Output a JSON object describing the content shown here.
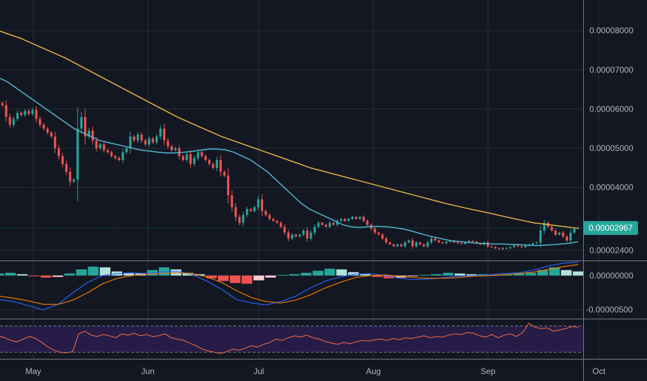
{
  "chart_data": {
    "type": "candlestick",
    "title": "",
    "colors": {
      "background": "#131722",
      "grid": "#2a2e39",
      "up": "#26a69a",
      "down": "#ef5350",
      "ma_fast": "#4fb7d0",
      "ma_slow": "#e6b245",
      "macd_line": "#2962ff",
      "signal_line": "#f57c00",
      "rsi_line": "#ff7043",
      "rsi_band": "#2a1d4d",
      "text": "#b2b5be"
    },
    "x_axis": {
      "start": "2020-04-22",
      "end": "2020-10-14",
      "ticks": [
        {
          "date": "2020-05-01",
          "label": "May"
        },
        {
          "date": "2020-06-01",
          "label": "Jun"
        },
        {
          "date": "2020-07-01",
          "label": "Jul"
        },
        {
          "date": "2020-08-01",
          "label": "Aug"
        },
        {
          "date": "2020-09-01",
          "label": "Sep"
        },
        {
          "date": "2020-10-01",
          "label": "Oct"
        }
      ]
    },
    "price_pane": {
      "ylim": [
        2.14e-05,
        8.78e-05
      ],
      "ticks": [
        {
          "value": 8e-05,
          "label": "0.00008000"
        },
        {
          "value": 7e-05,
          "label": "0.00007000"
        },
        {
          "value": 6e-05,
          "label": "0.00006000"
        },
        {
          "value": 5e-05,
          "label": "0.00005000"
        },
        {
          "value": 4e-05,
          "label": "0.00004000"
        },
        {
          "value": 2.4e-05,
          "label": "0.00002400"
        }
      ],
      "last_price": {
        "value": 2.967e-05,
        "label": "0.00002967"
      },
      "closes": [
        6.15e-05,
        6.1e-05,
        5.8e-05,
        5.6e-05,
        5.75e-05,
        5.9e-05,
        5.85e-05,
        5.95e-05,
        5.88e-05,
        5.98e-05,
        5.75e-05,
        5.6e-05,
        5.5e-05,
        5.4e-05,
        5.3e-05,
        5e-05,
        4.8e-05,
        4.6e-05,
        4.4e-05,
        4.15e-05,
        4.2e-05,
        5.5e-05,
        5.8e-05,
        5.3e-05,
        5.45e-05,
        5.2e-05,
        5e-05,
        5.1e-05,
        4.95e-05,
        4.9e-05,
        4.8e-05,
        4.75e-05,
        4.7e-05,
        4.9e-05,
        5e-05,
        5.3e-05,
        5.2e-05,
        5.35e-05,
        5.2e-05,
        5.1e-05,
        5.25e-05,
        5.15e-05,
        5.3e-05,
        5.5e-05,
        5.2e-05,
        5.05e-05,
        4.95e-05,
        5e-05,
        4.8e-05,
        4.7e-05,
        4.85e-05,
        4.6e-05,
        4.75e-05,
        4.9e-05,
        4.8e-05,
        4.7e-05,
        4.6e-05,
        4.5e-05,
        4.7e-05,
        4.4e-05,
        4.3e-05,
        3.8e-05,
        3.5e-05,
        3.25e-05,
        3.1e-05,
        3.3e-05,
        3.45e-05,
        3.4e-05,
        3.5e-05,
        3.7e-05,
        3.4e-05,
        3.3e-05,
        3.2e-05,
        3.15e-05,
        3.1e-05,
        3e-05,
        2.85e-05,
        2.7e-05,
        2.8e-05,
        2.75e-05,
        2.8e-05,
        2.9e-05,
        2.7e-05,
        2.85e-05,
        3e-05,
        3.1e-05,
        3.05e-05,
        3e-05,
        3.1e-05,
        3.05e-05,
        3.15e-05,
        3.2e-05,
        3.15e-05,
        3.2e-05,
        3.25e-05,
        3.2e-05,
        3.25e-05,
        3.15e-05,
        3.05e-05,
        2.95e-05,
        2.85e-05,
        2.8e-05,
        2.7e-05,
        2.6e-05,
        2.55e-05,
        2.5e-05,
        2.55e-05,
        2.5e-05,
        2.6e-05,
        2.65e-05,
        2.5e-05,
        2.6e-05,
        2.55e-05,
        2.5e-05,
        2.6e-05,
        2.7e-05,
        2.65e-05,
        2.6e-05,
        2.58e-05,
        2.62e-05,
        2.64e-05,
        2.6e-05,
        2.58e-05,
        2.56e-05,
        2.6e-05,
        2.64e-05,
        2.62e-05,
        2.58e-05,
        2.55e-05,
        2.6e-05,
        2.5e-05,
        2.48e-05,
        2.45e-05,
        2.43e-05,
        2.46e-05,
        2.45e-05,
        2.48e-05,
        2.52e-05,
        2.5e-05,
        2.48e-05,
        2.52e-05,
        2.55e-05,
        2.58e-05,
        2.6e-05,
        2.9e-05,
        3.1e-05,
        3e-05,
        2.9e-05,
        2.8e-05,
        2.85e-05,
        2.75e-05,
        2.65e-05,
        2.85e-05,
        2.95e-05,
        2.97e-05
      ],
      "ma_fast": [
        6.8e-05,
        6.7e-05,
        6.55e-05,
        6.4e-05,
        6.25e-05,
        6.1e-05,
        5.95e-05,
        5.8e-05,
        5.65e-05,
        5.5e-05,
        5.4e-05,
        5.3e-05,
        5.2e-05,
        5.15e-05,
        5.1e-05,
        5.05e-05,
        5e-05,
        4.95e-05,
        4.93e-05,
        4.9e-05,
        4.88e-05,
        4.88e-05,
        4.9e-05,
        4.92e-05,
        4.95e-05,
        4.98e-05,
        4.98e-05,
        4.96e-05,
        4.9e-05,
        4.8e-05,
        4.7e-05,
        4.55e-05,
        4.4e-05,
        4.2e-05,
        4e-05,
        3.8e-05,
        3.6e-05,
        3.45e-05,
        3.35e-05,
        3.25e-05,
        3.15e-05,
        3.05e-05,
        3e-05,
        2.98e-05,
        3e-05,
        3.01e-05,
        3e-05,
        2.98e-05,
        2.95e-05,
        2.9e-05,
        2.84e-05,
        2.78e-05,
        2.73e-05,
        2.68e-05,
        2.64e-05,
        2.62e-05,
        2.6e-05,
        2.58e-05,
        2.57e-05,
        2.56e-05,
        2.56e-05,
        2.55e-05,
        2.54e-05,
        2.53e-05,
        2.52e-05,
        2.53e-05,
        2.54e-05,
        2.56e-05,
        2.58e-05,
        2.62e-05
      ],
      "ma_slow": [
        8e-05,
        7.8e-05,
        7.55e-05,
        7.3e-05,
        7e-05,
        6.7e-05,
        6.4e-05,
        6.1e-05,
        5.8e-05,
        5.55e-05,
        5.3e-05,
        5.1e-05,
        4.9e-05,
        4.7e-05,
        4.5e-05,
        4.35e-05,
        4.2e-05,
        4.05e-05,
        3.9e-05,
        3.75e-05,
        3.6e-05,
        3.47e-05,
        3.35e-05,
        3.22e-05,
        3.1e-05,
        3.03e-05,
        2.96e-05
      ]
    },
    "macd_pane": {
      "ylim": [
        -6.3e-06,
        2.1e-06
      ],
      "ticks": [
        {
          "value": 0,
          "label": "0.00000000"
        },
        {
          "value": -5e-06,
          "label": "-0.00000500"
        }
      ],
      "histogram": [
        3e-07,
        4e-07,
        2e-07,
        -1e-07,
        -3e-07,
        -2e-07,
        3e-07,
        9e-07,
        1.3e-06,
        1.2e-06,
        6e-07,
        4e-07,
        3e-07,
        8e-07,
        1.2e-06,
        9e-07,
        4e-07,
        2e-07,
        -4e-07,
        -8e-07,
        -1.1e-06,
        -1.2e-06,
        -7e-07,
        -3e-07,
        1e-07,
        2e-07,
        4e-07,
        7e-07,
        1e-06,
        9e-07,
        5e-07,
        2e-07,
        -2e-07,
        -4e-07,
        -3e-07,
        -1e-07,
        1e-07,
        2e-07,
        4e-07,
        3e-07,
        2e-07,
        2e-07,
        1e-07,
        2e-07,
        3e-07,
        4e-07,
        8e-07,
        1.2e-06,
        8e-07,
        6e-07
      ],
      "macd": [
        -3.5e-06,
        -3.8e-06,
        -4.4e-06,
        -5e-06,
        -4.2e-06,
        -2.5e-06,
        -1e-06,
        0.0,
        3e-07,
        4e-07,
        3e-07,
        5e-07,
        6e-07,
        2e-07,
        -8e-07,
        -2e-06,
        -3.5e-06,
        -4e-06,
        -4.3e-06,
        -3.8e-06,
        -3e-06,
        -1.8e-06,
        -8e-07,
        -2e-07,
        2e-07,
        3e-07,
        0.0,
        -4e-07,
        -6e-07,
        -5e-07,
        -3e-07,
        -1e-07,
        0.0,
        1e-07,
        3e-07,
        4e-07,
        8e-07,
        1.4e-06,
        1.8e-06,
        2e-06
      ],
      "signal": [
        -3e-06,
        -3.3e-06,
        -3.7e-06,
        -4.2e-06,
        -4.2e-06,
        -3.6e-06,
        -2.5e-06,
        -1.2e-06,
        -4e-07,
        0.0,
        2e-07,
        3e-07,
        4e-07,
        3e-07,
        -2e-07,
        -1e-06,
        -2.2e-06,
        -3.2e-06,
        -3.8e-06,
        -4e-06,
        -3.6e-06,
        -2.8e-06,
        -1.8e-06,
        -1e-06,
        -3e-07,
        0.0,
        1e-07,
        -1e-07,
        -3e-07,
        -4e-07,
        -4e-07,
        -3e-07,
        -1e-07,
        0.0,
        1e-07,
        3e-07,
        5e-07,
        9e-07,
        1.3e-06,
        1.6e-06
      ]
    },
    "rsi_pane": {
      "ylim": [
        20,
        80
      ],
      "band": [
        30,
        70
      ],
      "values": [
        55,
        52,
        48,
        46,
        50,
        54,
        51,
        45,
        38,
        33,
        30,
        29,
        31,
        58,
        62,
        56,
        54,
        57,
        55,
        52,
        58,
        56,
        59,
        55,
        57,
        54,
        55,
        58,
        52,
        50,
        48,
        44,
        40,
        35,
        32,
        30,
        28,
        31,
        35,
        33,
        36,
        40,
        38,
        42,
        45,
        50,
        48,
        52,
        55,
        53,
        56,
        52,
        50,
        46,
        44,
        42,
        45,
        43,
        46,
        48,
        47,
        49,
        50,
        48,
        51,
        49,
        52,
        51,
        53,
        55,
        52,
        54,
        53,
        56,
        58,
        57,
        60,
        59,
        55,
        53,
        57,
        52,
        56,
        58,
        54,
        60,
        74,
        68,
        66,
        67,
        62,
        64,
        66,
        69,
        68
      ]
    }
  }
}
